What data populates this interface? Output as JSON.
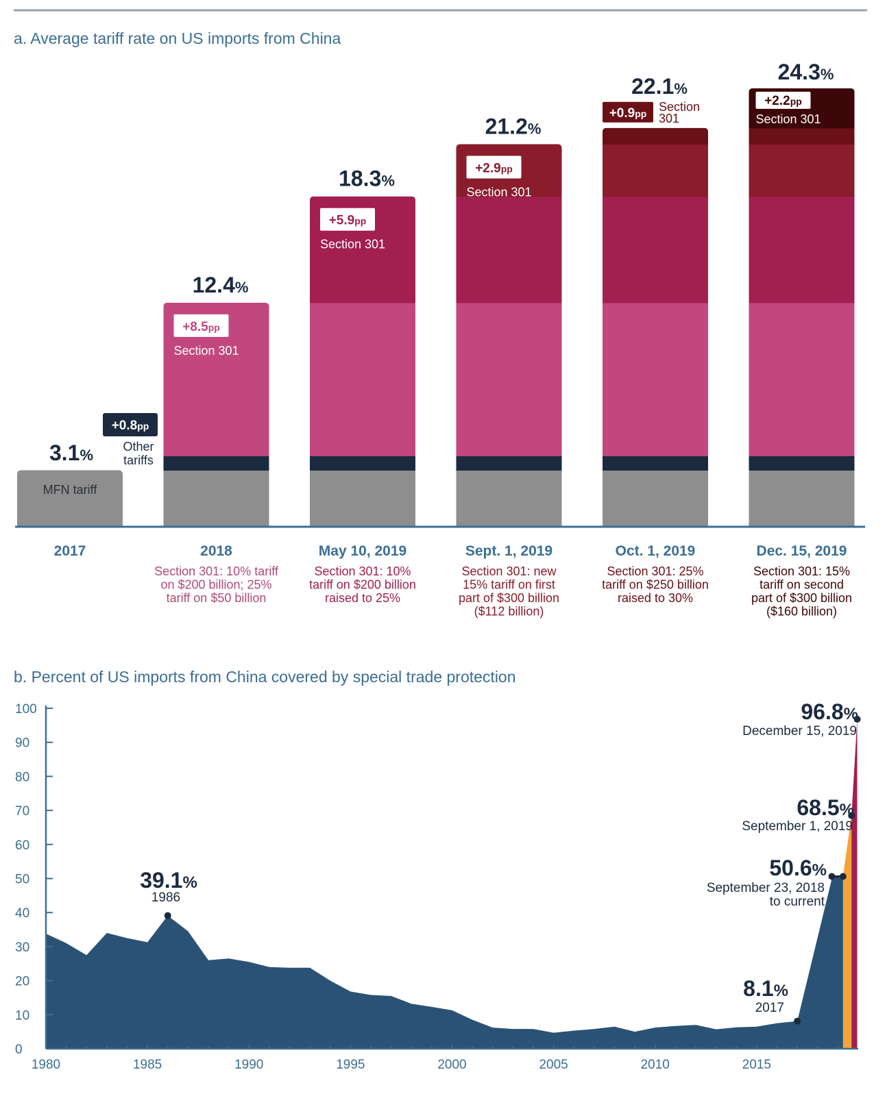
{
  "chart_data": [
    {
      "type": "bar",
      "title": "a. Average tariff rate on US imports from China",
      "categories": [
        "2017",
        "2018",
        "May 10, 2019",
        "Sept. 1, 2019",
        "Oct. 1, 2019",
        "Dec. 15, 2019"
      ],
      "totals": [
        "3.1",
        "12.4",
        "18.3",
        "21.2",
        "22.1",
        "24.3"
      ],
      "total_values": [
        3.1,
        12.4,
        18.3,
        21.2,
        22.1,
        24.3
      ],
      "pct_symbol": "%",
      "series": [
        {
          "name": "MFN tariff",
          "values": [
            3.1,
            3.1,
            3.1,
            3.1,
            3.1,
            3.1
          ]
        },
        {
          "name": "Other tariffs",
          "values": [
            0,
            0.8,
            0.8,
            0.8,
            0.8,
            0.8
          ]
        },
        {
          "name": "Section 301",
          "values": [
            0,
            8.5,
            8.5,
            8.5,
            8.5,
            8.5
          ]
        },
        {
          "name": "Section 301",
          "values": [
            0,
            0,
            5.9,
            5.9,
            5.9,
            5.9
          ]
        },
        {
          "name": "Section 301",
          "values": [
            0,
            0,
            0,
            2.9,
            2.9,
            2.9
          ]
        },
        {
          "name": "Section 301",
          "values": [
            0,
            0,
            0,
            0,
            0.9,
            0.9
          ]
        },
        {
          "name": "Section 301",
          "values": [
            0,
            0,
            0,
            0,
            0,
            2.2
          ]
        }
      ],
      "colors": [
        "#8e8e8e",
        "#1c2a3f",
        "#c2477e",
        "#a21f4f",
        "#8a1c2c",
        "#6a1016",
        "#3d0608"
      ],
      "increments": [
        {
          "value": "+0.8",
          "unit": "pp",
          "label": "Other tariffs",
          "label_lines": [
            "Other",
            "tariffs"
          ]
        },
        {
          "value": "+8.5",
          "unit": "pp",
          "label": "Section 301"
        },
        {
          "value": "+5.9",
          "unit": "pp",
          "label": "Section 301"
        },
        {
          "value": "+2.9",
          "unit": "pp",
          "label": "Section 301"
        },
        {
          "value": "+0.9",
          "unit": "pp",
          "label": "Section 301",
          "label_lines": [
            "Section",
            "301"
          ]
        },
        {
          "value": "+2.2",
          "unit": "pp",
          "label": "Section 301"
        }
      ],
      "mfn_label": "MFN tariff",
      "notes": [
        [],
        [
          "Section 301: 10% tariff",
          "on $200 billion; 25%",
          "tariff on $50 billion"
        ],
        [
          "Section 301: 10%",
          "tariff on $200 billion",
          "raised to 25%"
        ],
        [
          "Section 301: new",
          "15% tariff on first",
          "part of $300 billion",
          "($112 billion)"
        ],
        [
          "Section 301: 25%",
          "tariff on $250 billion",
          "raised to 30%"
        ],
        [
          "Section 301: 15%",
          "tariff on second",
          "part of $300 billion",
          "($160 billion)"
        ]
      ],
      "note_colors": [
        "#b04a78",
        "#a21f4f",
        "#8a1c2c",
        "#6a1016",
        "#3d0608"
      ],
      "ylim": [
        0,
        24.3
      ],
      "grid": false,
      "xlabel": "",
      "ylabel": ""
    },
    {
      "type": "area",
      "title": "b. Percent of US imports from China covered by special trade protection",
      "x": [
        1980,
        1981,
        1982,
        1983,
        1984,
        1985,
        1986,
        1987,
        1988,
        1989,
        1990,
        1991,
        1992,
        1993,
        1994,
        1995,
        1996,
        1997,
        1998,
        1999,
        2000,
        2001,
        2002,
        2003,
        2004,
        2005,
        2006,
        2007,
        2008,
        2009,
        2010,
        2011,
        2012,
        2013,
        2014,
        2015,
        2016,
        2017,
        2018.73,
        2019.25
      ],
      "y": [
        33.8,
        31.0,
        27.5,
        34.0,
        32.5,
        31.3,
        39.1,
        34.5,
        26.0,
        26.5,
        25.5,
        24.0,
        23.8,
        23.8,
        20.0,
        16.8,
        15.8,
        15.5,
        13.2,
        12.3,
        11.3,
        8.5,
        6.2,
        5.8,
        5.8,
        4.7,
        5.3,
        5.8,
        6.5,
        5.0,
        6.2,
        6.7,
        7.0,
        5.7,
        6.3,
        6.5,
        7.5,
        8.1,
        50.6,
        50.6
      ],
      "stage_x": [
        2019.25,
        2019.67,
        2019.95
      ],
      "stage_y": [
        50.6,
        68.5,
        96.8
      ],
      "stage_colors": [
        "#f2a43c",
        "#a21f4f"
      ],
      "area_color": "#2a5275",
      "xlim": [
        1980,
        2020
      ],
      "ylim": [
        0,
        100
      ],
      "xticks": [
        "1980",
        "1985",
        "1990",
        "1995",
        "2000",
        "2005",
        "2010",
        "2015"
      ],
      "yticks": [
        "0",
        "10",
        "20",
        "30",
        "40",
        "50",
        "60",
        "70",
        "80",
        "90",
        "100"
      ],
      "annotations": [
        {
          "value": "39.1",
          "pct": "%",
          "label": "1986"
        },
        {
          "value": "8.1",
          "pct": "%",
          "label": "2017"
        },
        {
          "value": "50.6",
          "pct": "%",
          "label_lines": [
            "September 23, 2018",
            "to current"
          ]
        },
        {
          "value": "68.5",
          "pct": "%",
          "label": "September 1, 2019"
        },
        {
          "value": "96.8",
          "pct": "%",
          "label": "December 15, 2019"
        }
      ],
      "grid": false,
      "xlabel": "",
      "ylabel": ""
    }
  ]
}
